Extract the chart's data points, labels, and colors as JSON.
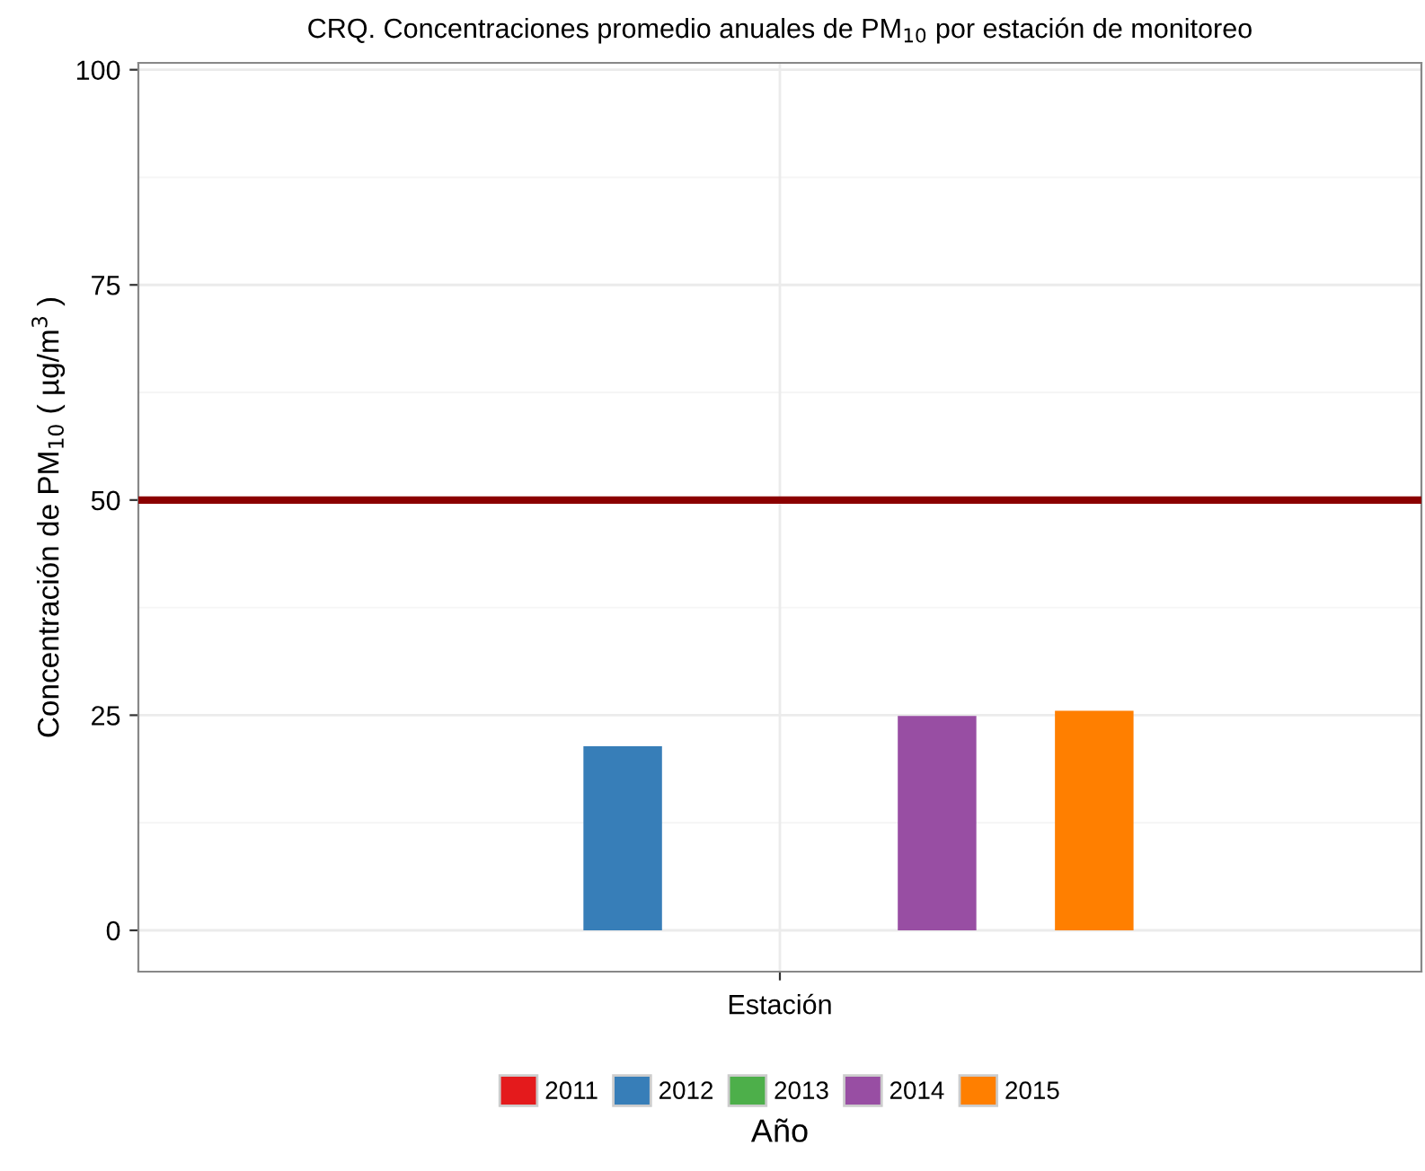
{
  "chart_data": {
    "type": "bar",
    "title": "CRQ. Concentraciones promedio anuales de PM$_{10}$ por estación de monitoreo",
    "xlabel": "Estación",
    "ylabel": "Concentración de PM$_{10}$ ( µg/m$^{3}$ )",
    "legend_title": "Año",
    "categories": [
      null
    ],
    "series": [
      {
        "name": "2011",
        "color": "#e41a1c",
        "values": [
          null
        ]
      },
      {
        "name": "2012",
        "color": "#377eb8",
        "values": [
          21.4
        ]
      },
      {
        "name": "2013",
        "color": "#4daf4a",
        "values": [
          null
        ]
      },
      {
        "name": "2014",
        "color": "#984ea3",
        "values": [
          24.9
        ]
      },
      {
        "name": "2015",
        "color": "#ff7f00",
        "values": [
          25.5
        ]
      }
    ],
    "ylim": [
      -4.8,
      100.8
    ],
    "yticks": [
      0,
      25,
      50,
      75,
      100
    ],
    "grid": true,
    "legend": "bottom",
    "ref_lines": [
      {
        "axis": "y",
        "value": 50,
        "color": "#8b0000",
        "line_style": "solid"
      }
    ]
  }
}
